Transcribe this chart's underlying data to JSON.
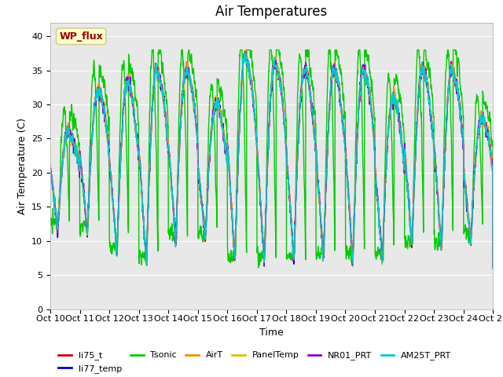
{
  "title": "Air Temperatures",
  "xlabel": "Time",
  "ylabel": "Air Temperature (C)",
  "ylim": [
    0,
    42
  ],
  "yticks": [
    0,
    5,
    10,
    15,
    20,
    25,
    30,
    35,
    40
  ],
  "n_days": 15,
  "day_maxes": [
    26,
    32,
    33,
    35,
    35,
    30,
    37,
    36,
    35,
    35,
    35,
    31,
    35,
    35,
    28
  ],
  "day_mins": [
    12,
    11,
    8,
    7,
    10,
    10,
    7,
    7,
    7,
    7,
    7,
    7,
    9,
    9,
    10
  ],
  "series": [
    {
      "name": "li75_t",
      "color": "#cc0000"
    },
    {
      "name": "li77_temp",
      "color": "#0000cc"
    },
    {
      "name": "Tsonic",
      "color": "#00cc00"
    },
    {
      "name": "AirT",
      "color": "#ff8800"
    },
    {
      "name": "PanelTemp",
      "color": "#cccc00"
    },
    {
      "name": "NR01_PRT",
      "color": "#8800cc"
    },
    {
      "name": "AM25T_PRT",
      "color": "#00cccc"
    }
  ],
  "annotation_text": "WP_flux",
  "annotation_color": "#990000",
  "annotation_bg": "#ffffcc",
  "annotation_edge": "#cccc88",
  "background_color": "#e8e8e8",
  "title_fontsize": 12,
  "axis_label_fontsize": 9,
  "tick_fontsize": 8,
  "legend_fontsize": 8,
  "line_width": 1.0
}
